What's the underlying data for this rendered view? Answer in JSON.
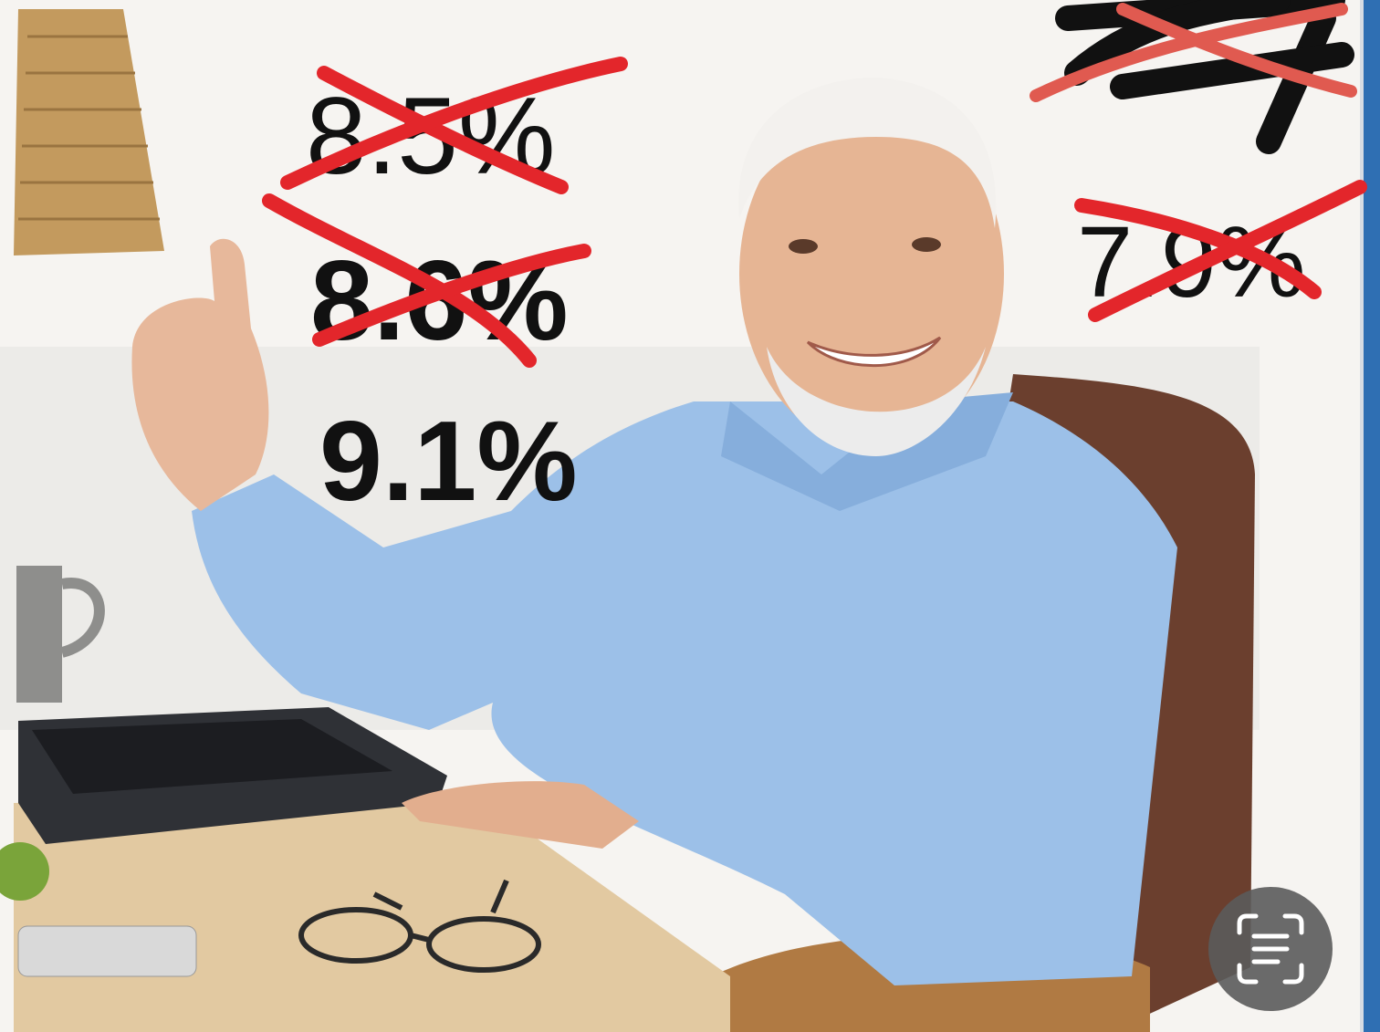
{
  "overlay_texts": {
    "crossed": [
      "8.5%",
      "8.6%",
      "7.9%"
    ],
    "current": "9.1%"
  }
}
